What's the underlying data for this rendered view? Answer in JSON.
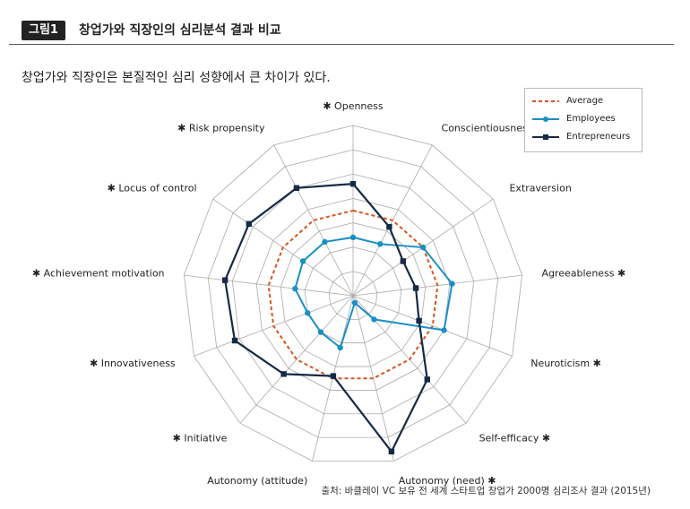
{
  "header": {
    "figure_label": "그림1",
    "title": "창업가와 직장인의 심리분석 결과 비교"
  },
  "subtitle": "창업가와 직장인은 본질적인 심리 성향에서 큰 차이가 있다.",
  "source": "출처: 바클레이 VC 보유 전 세계 스타트업 창업가 2000명 심리조사 결과 (2015년)",
  "colors": {
    "average": "#d9531e",
    "employees": "#1a8fc4",
    "entrepreneurs": "#152a45",
    "grid": "#aaaaaa"
  },
  "chart_data": {
    "type": "radar",
    "grid_rings": 7,
    "range": [
      0,
      7
    ],
    "legend_position": "top-right",
    "categories": [
      {
        "label": "Openness",
        "starred": true,
        "star_side": "left"
      },
      {
        "label": "Conscientiousness",
        "starred": false
      },
      {
        "label": "Extraversion",
        "starred": false
      },
      {
        "label": "Agreeableness",
        "starred": true,
        "star_side": "right"
      },
      {
        "label": "Neuroticism",
        "starred": true,
        "star_side": "right"
      },
      {
        "label": "Self-efficacy",
        "starred": true,
        "star_side": "right"
      },
      {
        "label": "Autonomy (need)",
        "starred": true,
        "star_side": "right"
      },
      {
        "label": "Autonomy (attitude)",
        "starred": false
      },
      {
        "label": "Initiative",
        "starred": true,
        "star_side": "left"
      },
      {
        "label": "Innovativeness",
        "starred": true,
        "star_side": "left"
      },
      {
        "label": "Achievement motivation",
        "starred": true,
        "star_side": "left"
      },
      {
        "label": "Locus of control",
        "starred": true,
        "star_side": "left"
      },
      {
        "label": "Risk propensity",
        "starred": true,
        "star_side": "left"
      }
    ],
    "series": [
      {
        "name": "Average",
        "style": "dashed",
        "marker": "none",
        "values": [
          3.5,
          3.5,
          3.5,
          3.5,
          3.5,
          3.5,
          3.5,
          3.5,
          3.5,
          3.5,
          3.5,
          3.5,
          3.5
        ]
      },
      {
        "name": "Employees",
        "style": "solid",
        "marker": "circle",
        "values": [
          2.4,
          2.4,
          3.5,
          4.1,
          4.0,
          1.3,
          0.3,
          2.2,
          2.0,
          2.0,
          2.4,
          2.5,
          2.5
        ]
      },
      {
        "name": "Entrepreneurs",
        "style": "solid",
        "marker": "square",
        "values": [
          4.6,
          3.2,
          2.5,
          2.6,
          2.9,
          4.6,
          6.6,
          3.4,
          4.3,
          5.2,
          5.3,
          5.2,
          5.0
        ]
      }
    ]
  }
}
